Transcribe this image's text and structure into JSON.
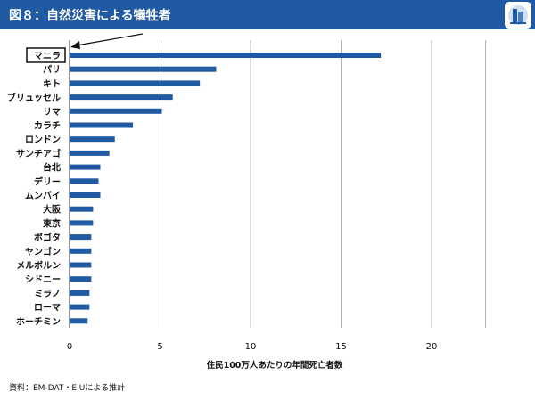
{
  "header": {
    "title": "図８：自然災害による犠牲者",
    "logo_icon": "building-logo-icon"
  },
  "chart_data": {
    "type": "bar",
    "orientation": "horizontal",
    "categories": [
      "マニラ",
      "パリ",
      "キト",
      "ブリュッセル",
      "リマ",
      "カラチ",
      "ロンドン",
      "サンチアゴ",
      "台北",
      "デリー",
      "ムンバイ",
      "大阪",
      "東京",
      "ボゴタ",
      "ヤンゴン",
      "メルボルン",
      "シドニー",
      "ミラノ",
      "ローマ",
      "ホーチミン"
    ],
    "values": [
      17.2,
      8.1,
      7.2,
      5.7,
      5.1,
      3.5,
      2.5,
      2.2,
      1.7,
      1.6,
      1.7,
      1.3,
      1.3,
      1.2,
      1.2,
      1.2,
      1.2,
      1.1,
      1.1,
      1.0
    ],
    "xticks": [
      0,
      5,
      10,
      15,
      20
    ],
    "xlim": [
      0,
      22
    ],
    "xlabel": "住民100万人あたりの年間死亡者数",
    "ylabel": "",
    "grid": "vertical",
    "highlight": "マニラ",
    "bar_color": "#1f5aa3"
  },
  "source": "資料：EM-DAT・EIUによる推計"
}
